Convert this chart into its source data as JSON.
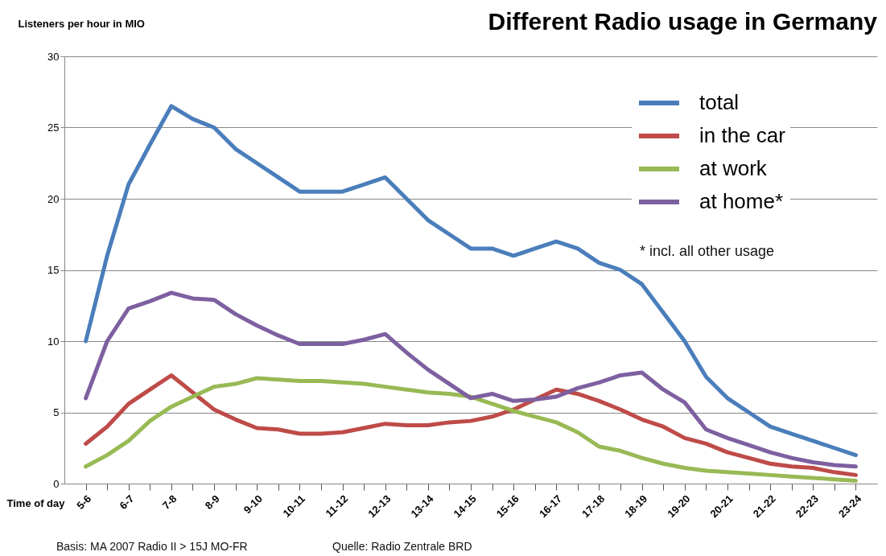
{
  "chart_data": {
    "type": "line",
    "title": "Different Radio usage in Germany",
    "ylabel": "Listeners per hour in MIO",
    "xlabel": "Time of day",
    "categories": [
      "5-6",
      null,
      "6-7",
      null,
      "7-8",
      null,
      "8-9",
      null,
      "9-10",
      null,
      "10-11",
      null,
      "11-12",
      null,
      "12-13",
      null,
      "13-14",
      null,
      "14-15",
      null,
      "15-16",
      null,
      "16-17",
      null,
      "17-18",
      null,
      "18-19",
      null,
      "19-20",
      null,
      "20-21",
      null,
      "21-22",
      null,
      "22-23",
      null,
      "23-24"
    ],
    "series": [
      {
        "name": "total",
        "color": "#4a7ebb",
        "values": [
          10,
          16,
          21,
          23.8,
          26.5,
          25.6,
          25,
          23.5,
          22.5,
          21.5,
          20.5,
          20.5,
          20.5,
          21,
          21.5,
          20,
          18.5,
          17.5,
          16.5,
          16.5,
          16,
          16.5,
          17,
          16.5,
          15.5,
          15,
          14,
          12,
          10,
          7.5,
          6,
          5,
          4,
          3.5,
          3,
          2.5,
          2
        ]
      },
      {
        "name": "in the car",
        "color": "#be4b48",
        "values": [
          2.8,
          4,
          5.6,
          6.6,
          7.6,
          6.4,
          5.2,
          4.5,
          3.9,
          3.8,
          3.5,
          3.5,
          3.6,
          3.9,
          4.2,
          4.1,
          4.1,
          4.3,
          4.4,
          4.7,
          5.2,
          5.9,
          6.6,
          6.3,
          5.8,
          5.2,
          4.5,
          4,
          3.2,
          2.8,
          2.2,
          1.8,
          1.4,
          1.2,
          1.1,
          0.8,
          0.6
        ]
      },
      {
        "name": "at work",
        "color": "#98b954",
        "values": [
          1.2,
          2,
          3,
          4.4,
          5.4,
          6.1,
          6.8,
          7,
          7.4,
          7.3,
          7.2,
          7.2,
          7.1,
          7,
          6.8,
          6.6,
          6.4,
          6.3,
          6.1,
          5.6,
          5.1,
          4.7,
          4.3,
          3.6,
          2.6,
          2.3,
          1.8,
          1.4,
          1.1,
          0.9,
          0.8,
          0.7,
          0.6,
          0.5,
          0.4,
          0.3,
          0.2
        ]
      },
      {
        "name": "at home*",
        "color": "#7d60a0",
        "values": [
          6,
          10,
          12.3,
          12.8,
          13.4,
          13,
          12.9,
          11.9,
          11.1,
          10.4,
          9.8,
          9.8,
          9.8,
          10.1,
          10.5,
          9.2,
          8,
          7,
          6,
          6.3,
          5.8,
          5.9,
          6.1,
          6.7,
          7.1,
          7.6,
          7.8,
          6.6,
          5.7,
          3.8,
          3.2,
          2.7,
          2.2,
          1.8,
          1.5,
          1.3,
          1.2
        ]
      }
    ],
    "ylim": [
      0,
      30
    ],
    "yticks": [
      0,
      5,
      10,
      15,
      20,
      25,
      30
    ],
    "grid": "y",
    "legend": "top right",
    "annotations": [
      "* incl. all other usage",
      "Basis: MA 2007  Radio II >  15J MO-FR",
      "Quelle: Radio Zentrale BRD"
    ]
  }
}
